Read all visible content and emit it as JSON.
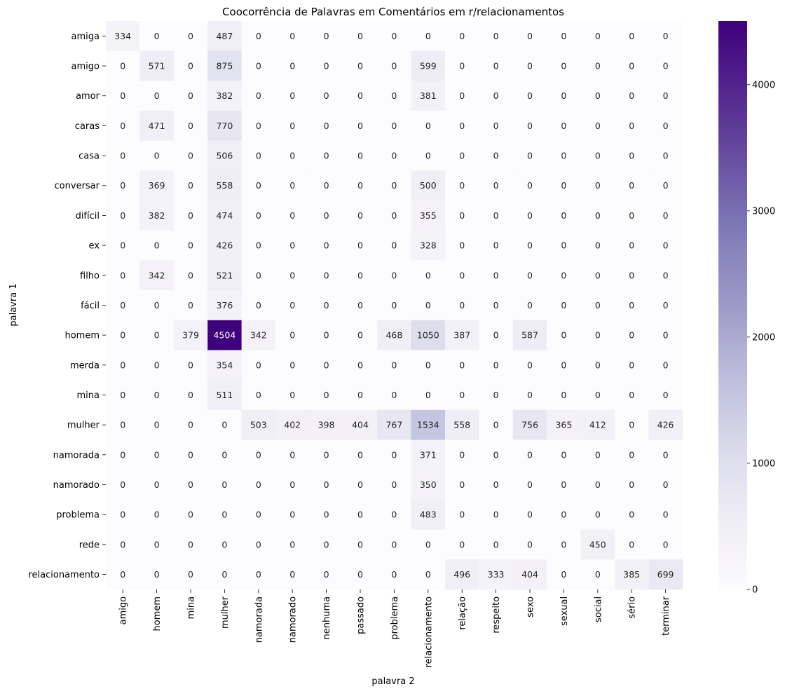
{
  "chart_data": {
    "type": "heatmap",
    "title": "Coocorrência de Palavras em Comentários em r/relacionamentos",
    "xlabel": "palavra 2",
    "ylabel": "palavra 1",
    "x_categories": [
      "amigo",
      "homem",
      "mina",
      "mulher",
      "namorada",
      "namorado",
      "nenhuma",
      "passado",
      "problema",
      "relacionamento",
      "relação",
      "respeito",
      "sexo",
      "sexual",
      "social",
      "sério",
      "terminar"
    ],
    "y_categories": [
      "amiga",
      "amigo",
      "amor",
      "caras",
      "casa",
      "conversar",
      "difícil",
      "ex",
      "filho",
      "fácil",
      "homem",
      "merda",
      "mina",
      "mulher",
      "namorada",
      "namorado",
      "problema",
      "rede",
      "relacionamento"
    ],
    "values": [
      [
        334,
        0,
        0,
        487,
        0,
        0,
        0,
        0,
        0,
        0,
        0,
        0,
        0,
        0,
        0,
        0,
        0
      ],
      [
        0,
        571,
        0,
        875,
        0,
        0,
        0,
        0,
        0,
        599,
        0,
        0,
        0,
        0,
        0,
        0,
        0
      ],
      [
        0,
        0,
        0,
        382,
        0,
        0,
        0,
        0,
        0,
        381,
        0,
        0,
        0,
        0,
        0,
        0,
        0
      ],
      [
        0,
        471,
        0,
        770,
        0,
        0,
        0,
        0,
        0,
        0,
        0,
        0,
        0,
        0,
        0,
        0,
        0
      ],
      [
        0,
        0,
        0,
        506,
        0,
        0,
        0,
        0,
        0,
        0,
        0,
        0,
        0,
        0,
        0,
        0,
        0
      ],
      [
        0,
        369,
        0,
        558,
        0,
        0,
        0,
        0,
        0,
        500,
        0,
        0,
        0,
        0,
        0,
        0,
        0
      ],
      [
        0,
        382,
        0,
        474,
        0,
        0,
        0,
        0,
        0,
        355,
        0,
        0,
        0,
        0,
        0,
        0,
        0
      ],
      [
        0,
        0,
        0,
        426,
        0,
        0,
        0,
        0,
        0,
        328,
        0,
        0,
        0,
        0,
        0,
        0,
        0
      ],
      [
        0,
        342,
        0,
        521,
        0,
        0,
        0,
        0,
        0,
        0,
        0,
        0,
        0,
        0,
        0,
        0,
        0
      ],
      [
        0,
        0,
        0,
        376,
        0,
        0,
        0,
        0,
        0,
        0,
        0,
        0,
        0,
        0,
        0,
        0,
        0
      ],
      [
        0,
        0,
        379,
        4504,
        342,
        0,
        0,
        0,
        468,
        1050,
        387,
        0,
        587,
        0,
        0,
        0,
        0
      ],
      [
        0,
        0,
        0,
        354,
        0,
        0,
        0,
        0,
        0,
        0,
        0,
        0,
        0,
        0,
        0,
        0,
        0
      ],
      [
        0,
        0,
        0,
        511,
        0,
        0,
        0,
        0,
        0,
        0,
        0,
        0,
        0,
        0,
        0,
        0,
        0
      ],
      [
        0,
        0,
        0,
        0,
        503,
        402,
        398,
        404,
        767,
        1534,
        558,
        0,
        756,
        365,
        412,
        0,
        426
      ],
      [
        0,
        0,
        0,
        0,
        0,
        0,
        0,
        0,
        0,
        371,
        0,
        0,
        0,
        0,
        0,
        0,
        0
      ],
      [
        0,
        0,
        0,
        0,
        0,
        0,
        0,
        0,
        0,
        350,
        0,
        0,
        0,
        0,
        0,
        0,
        0
      ],
      [
        0,
        0,
        0,
        0,
        0,
        0,
        0,
        0,
        0,
        483,
        0,
        0,
        0,
        0,
        0,
        0,
        0
      ],
      [
        0,
        0,
        0,
        0,
        0,
        0,
        0,
        0,
        0,
        0,
        0,
        0,
        0,
        0,
        450,
        0,
        0
      ],
      [
        0,
        0,
        0,
        0,
        0,
        0,
        0,
        0,
        0,
        0,
        496,
        333,
        404,
        0,
        0,
        385,
        699
      ]
    ],
    "colormap": "Purples",
    "vmin": 0,
    "vmax": 4504,
    "colorbar_ticks": [
      0,
      1000,
      2000,
      3000,
      4000
    ],
    "grid": false
  }
}
